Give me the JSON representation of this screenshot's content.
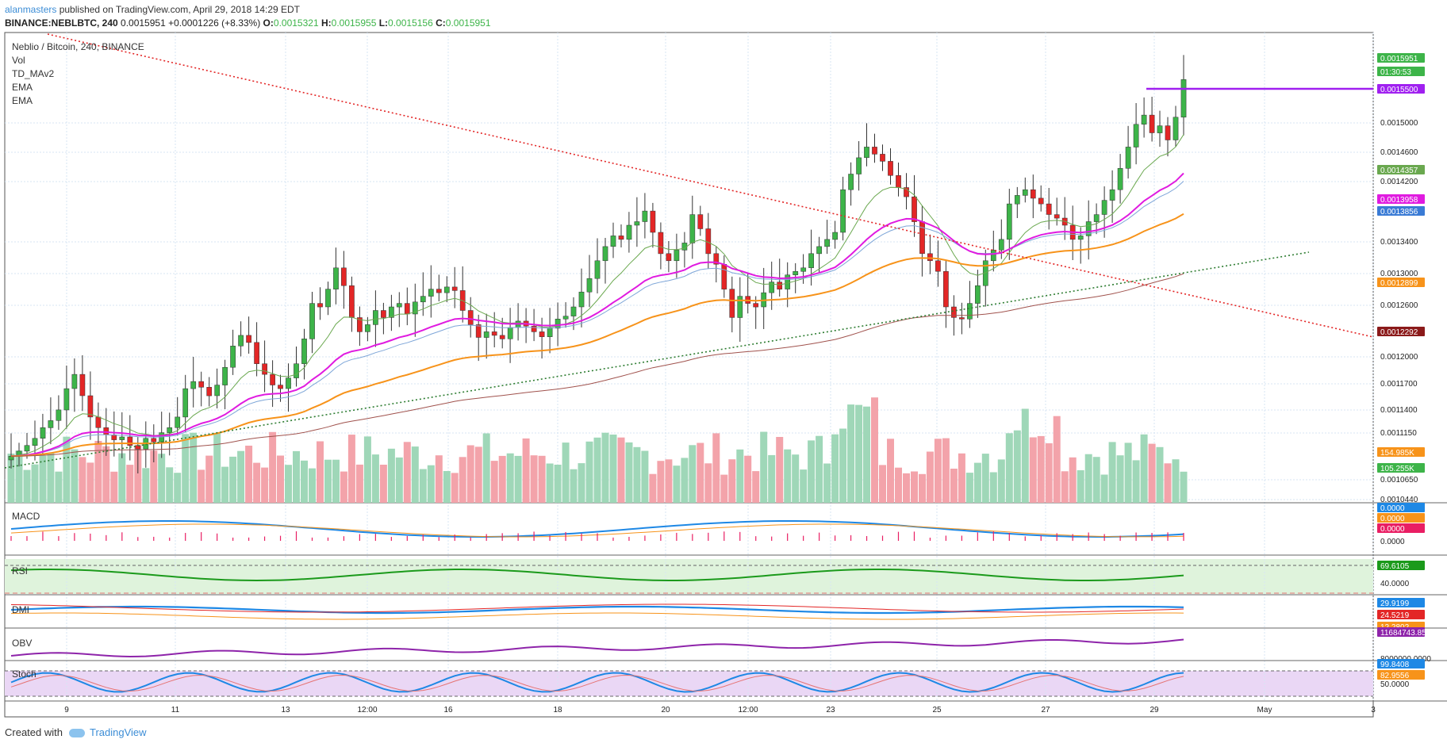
{
  "header": {
    "user": "alanmasters",
    "published": " published on TradingView.com, April 29, 2018 14:29 EDT",
    "symbol": "BINANCE:NEBLBTC, 240",
    "last": "0.0015951",
    "change": "+0.0001226 (+8.33%)",
    "o_label": "O:",
    "o": "0.0015321",
    "h_label": "H:",
    "h": "0.0015955",
    "l_label": "L:",
    "l": "0.0015156",
    "c_label": "C:",
    "c": "0.0015951"
  },
  "legend": [
    "Neblio / Bitcoin, 240, BINANCE",
    "Vol",
    "TD_MAv2",
    "EMA",
    "EMA"
  ],
  "panels": {
    "macd": "MACD",
    "rsi": "RSI",
    "dmi": "DMI",
    "obv": "OBV",
    "stoch": "Stoch"
  },
  "footer": {
    "created": "Created with",
    "brand": "TradingView"
  },
  "colors": {
    "up": "#3db449",
    "down": "#e32626",
    "vol_up": "#9fd7b8",
    "vol_down": "#f3a3aa",
    "ema_orange": "#f7931a",
    "ema_magenta": "#e01be0",
    "grid": "#d7e4f3"
  },
  "chart_data": {
    "type": "candlestick",
    "timeframe": "240",
    "x_labels": [
      "9",
      "11",
      "13",
      "12:00",
      "16",
      "18",
      "20",
      "12:00",
      "23",
      "25",
      "27",
      "29",
      "May",
      "3"
    ],
    "y_ticks": [
      "0.0015000",
      "0.0014600",
      "0.0014200",
      "0.0013400",
      "0.0013000",
      "0.0012600",
      "0.0012000",
      "0.0011700",
      "0.0011400",
      "0.0011150",
      "0.0010650",
      "0.0010440"
    ],
    "price_labels": [
      {
        "text": "0.0015951",
        "color": "#3db449"
      },
      {
        "text": "01:30:53",
        "color": "#3db449"
      },
      {
        "text": "0.0015500",
        "color": "#a020f0"
      },
      {
        "text": "0.0014357",
        "color": "#6aa84f"
      },
      {
        "text": "0.0013958",
        "color": "#e01be0"
      },
      {
        "text": "0.0013856",
        "color": "#3a7bd5"
      },
      {
        "text": "0.0012899",
        "color": "#f7931a"
      },
      {
        "text": "0.0012292",
        "color": "#8b1a1a"
      },
      {
        "text": "154.985K",
        "color": "#f7931a"
      },
      {
        "text": "105.255K",
        "color": "#3db449"
      }
    ],
    "macd_labels": [
      {
        "text": "0.0000",
        "color": "#1e88e5"
      },
      {
        "text": "0.0000",
        "color": "#f7931a"
      },
      {
        "text": "0.0000",
        "color": "#e91e63"
      },
      {
        "text": "0.0000",
        "color": null
      }
    ],
    "rsi_labels": [
      {
        "text": "69.6105",
        "color": "#1b9a1b"
      },
      {
        "text": "40.0000",
        "color": null
      }
    ],
    "dmi_labels": [
      {
        "text": "29.9199",
        "color": "#1e88e5"
      },
      {
        "text": "24.5219",
        "color": "#e32626"
      },
      {
        "text": "12.2802",
        "color": "#f7931a"
      }
    ],
    "obv_labels": [
      {
        "text": "11684743.8500",
        "color": "#8e24aa"
      },
      {
        "text": "8000000.0000",
        "color": null
      }
    ],
    "stoch_labels": [
      {
        "text": "99.8408",
        "color": "#1e88e5"
      },
      {
        "text": "82.9556",
        "color": "#f7931a"
      },
      {
        "text": "50.0000",
        "color": null
      }
    ],
    "price_range": [
      0.001044,
      0.00164
    ],
    "closes": [
      0.001065,
      0.001072,
      0.00108,
      0.00109,
      0.001105,
      0.001115,
      0.00113,
      0.00116,
      0.00118,
      0.00115,
      0.00112,
      0.001105,
      0.001095,
      0.001088,
      0.001092,
      0.00108,
      0.001075,
      0.00109,
      0.001085,
      0.001098,
      0.001105,
      0.00112,
      0.00116,
      0.00117,
      0.001162,
      0.00115,
      0.001165,
      0.00119,
      0.00122,
      0.001235,
      0.001225,
      0.001195,
      0.00118,
      0.001165,
      0.00116,
      0.001175,
      0.001195,
      0.00123,
      0.00128,
      0.001275,
      0.0013,
      0.00133,
      0.001305,
      0.00126,
      0.00124,
      0.00125,
      0.00127,
      0.00126,
      0.001275,
      0.00128,
      0.001265,
      0.001282,
      0.00129,
      0.0013,
      0.001295,
      0.001303,
      0.001298,
      0.00127,
      0.00125,
      0.001232,
      0.00124,
      0.001235,
      0.00123,
      0.001246,
      0.001255,
      0.001248,
      0.00124,
      0.001233,
      0.001245,
      0.001258,
      0.001262,
      0.001275,
      0.001296,
      0.001315,
      0.00134,
      0.00136,
      0.001375,
      0.00137,
      0.00139,
      0.001395,
      0.00141,
      0.00138,
      0.00135,
      0.00134,
      0.001355,
      0.001365,
      0.001405,
      0.001385,
      0.00135,
      0.001335,
      0.0013,
      0.00126,
      0.00129,
      0.00128,
      0.001275,
      0.001295,
      0.00131,
      0.0013,
      0.00132,
      0.001325,
      0.00133,
      0.00135,
      0.00136,
      0.00137,
      0.00138,
      0.00144,
      0.001462,
      0.001485,
      0.0015,
      0.00149,
      0.00148,
      0.00146,
      0.001443,
      0.00143,
      0.001395,
      0.00135,
      0.00134,
      0.001325,
      0.001275,
      0.00126,
      0.001258,
      0.00128,
      0.001305,
      0.00134,
      0.001355,
      0.00137,
      0.00142,
      0.001432,
      0.00144,
      0.001428,
      0.00142,
      0.001405,
      0.0014,
      0.00139,
      0.00137,
      0.001375,
      0.001395,
      0.001405,
      0.001425,
      0.00144,
      0.00147,
      0.0015,
      0.001532,
      0.001545,
      0.00152,
      0.00153,
      0.00151,
      0.001542,
      0.001595
    ]
  }
}
